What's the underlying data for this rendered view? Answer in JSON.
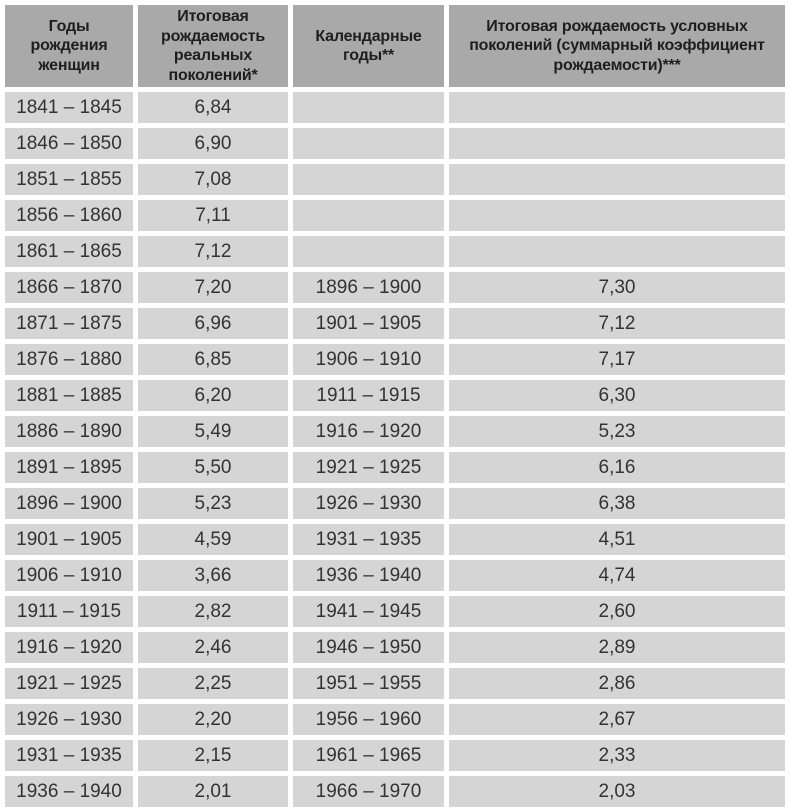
{
  "colors": {
    "header_bg": "#a9a9a9",
    "cell_bg": "#d5d5d5",
    "gap": "#ffffff",
    "header_text": "#1e1e1e",
    "body_text": "#333333"
  },
  "table": {
    "columns": [
      {
        "label": "Годы рождения женщин"
      },
      {
        "label": "Итоговая рождаемость реальных поколений*"
      },
      {
        "label": "Календарные годы**"
      },
      {
        "label": "Итоговая рождаемость условных поколений (суммарный коэффициент рождаемости)***"
      }
    ],
    "rows": [
      [
        "1841 – 1845",
        "6,84",
        "",
        ""
      ],
      [
        "1846 – 1850",
        "6,90",
        "",
        ""
      ],
      [
        "1851 – 1855",
        "7,08",
        "",
        ""
      ],
      [
        "1856 – 1860",
        "7,11",
        "",
        ""
      ],
      [
        "1861 – 1865",
        "7,12",
        "",
        ""
      ],
      [
        "1866 – 1870",
        "7,20",
        "1896 – 1900",
        "7,30"
      ],
      [
        "1871 – 1875",
        "6,96",
        "1901 – 1905",
        "7,12"
      ],
      [
        "1876 – 1880",
        "6,85",
        "1906 – 1910",
        "7,17"
      ],
      [
        "1881 – 1885",
        "6,20",
        "1911 – 1915",
        "6,30"
      ],
      [
        "1886 – 1890",
        "5,49",
        "1916 – 1920",
        "5,23"
      ],
      [
        "1891 – 1895",
        "5,50",
        "1921 – 1925",
        "6,16"
      ],
      [
        "1896 – 1900",
        "5,23",
        "1926 – 1930",
        "6,38"
      ],
      [
        "1901 – 1905",
        "4,59",
        "1931 – 1935",
        "4,51"
      ],
      [
        "1906 – 1910",
        "3,66",
        "1936 – 1940",
        "4,74"
      ],
      [
        "1911 – 1915",
        "2,82",
        "1941 – 1945",
        "2,60"
      ],
      [
        "1916 – 1920",
        "2,46",
        "1946 – 1950",
        "2,89"
      ],
      [
        "1921 – 1925",
        "2,25",
        "1951 – 1955",
        "2,86"
      ],
      [
        "1926 – 1930",
        "2,20",
        "1956 – 1960",
        "2,67"
      ],
      [
        "1931 – 1935",
        "2,15",
        "1961 – 1965",
        "2,33"
      ],
      [
        "1936 – 1940",
        "2,01",
        "1966 – 1970",
        "2,03"
      ]
    ]
  }
}
